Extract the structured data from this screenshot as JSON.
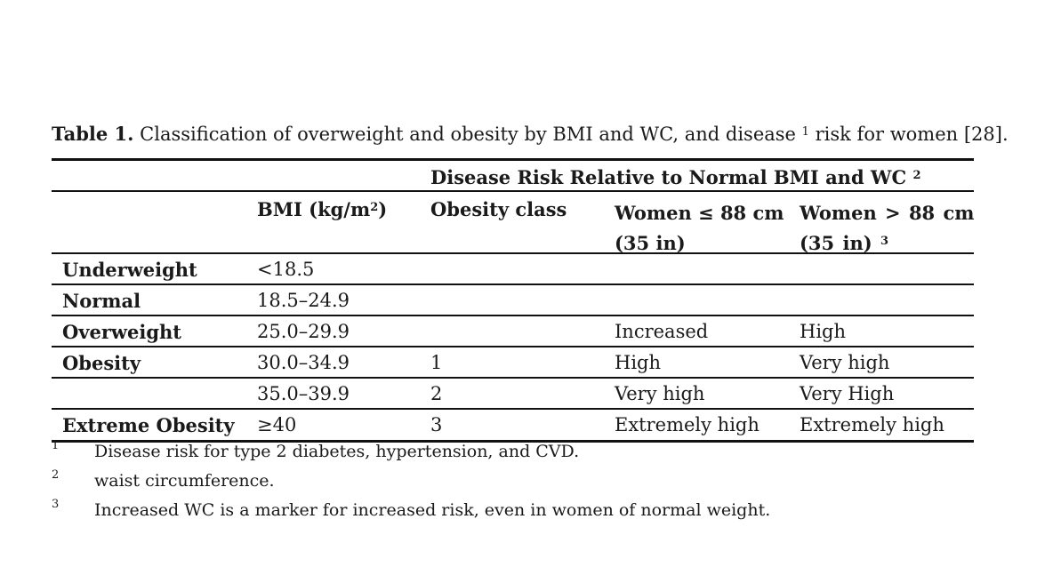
{
  "caption": {
    "label": "Table 1.",
    "text_before": " Classification of overweight and obesity by BMI and WC, and disease ",
    "sup": "1",
    "text_after": " risk for women [28]."
  },
  "header": {
    "group_label": "Disease Risk Relative to Normal BMI and WC",
    "group_sup": "2",
    "col_bmi": "BMI (kg/m",
    "col_bmi_sup": "2",
    "col_bmi_end": ")",
    "col_class": "Obesity class",
    "col_women_le_1": "Women ≤ 88 cm",
    "col_women_le_2": "(35 in)",
    "col_women_gt_1": "Women > 88 cm",
    "col_women_gt_2": "(35 in)",
    "col_women_gt_sup": "3"
  },
  "rows": [
    {
      "category": "Underweight",
      "bmi": "<18.5",
      "class": "",
      "risk_le": "",
      "risk_gt": ""
    },
    {
      "category": "Normal",
      "bmi": "18.5–24.9",
      "class": "",
      "risk_le": "",
      "risk_gt": ""
    },
    {
      "category": "Overweight",
      "bmi": "25.0–29.9",
      "class": "",
      "risk_le": "Increased",
      "risk_gt": "High"
    },
    {
      "category": "Obesity",
      "bmi": "30.0–34.9",
      "class": "1",
      "risk_le": "High",
      "risk_gt": "Very high"
    },
    {
      "category": "",
      "bmi": "35.0–39.9",
      "class": "2",
      "risk_le": "Very high",
      "risk_gt": "Very High"
    },
    {
      "category": "Extreme Obesity",
      "bmi": "≥40",
      "class": "3",
      "risk_le": "Extremely high",
      "risk_gt": "Extremely high"
    }
  ],
  "footnotes": [
    {
      "mark": "1",
      "text": "Disease risk for type 2 diabetes, hypertension, and CVD."
    },
    {
      "mark": "2",
      "text": "waist circumference."
    },
    {
      "mark": "3",
      "text": "Increased WC is a marker for increased risk, even in women of normal weight."
    }
  ]
}
